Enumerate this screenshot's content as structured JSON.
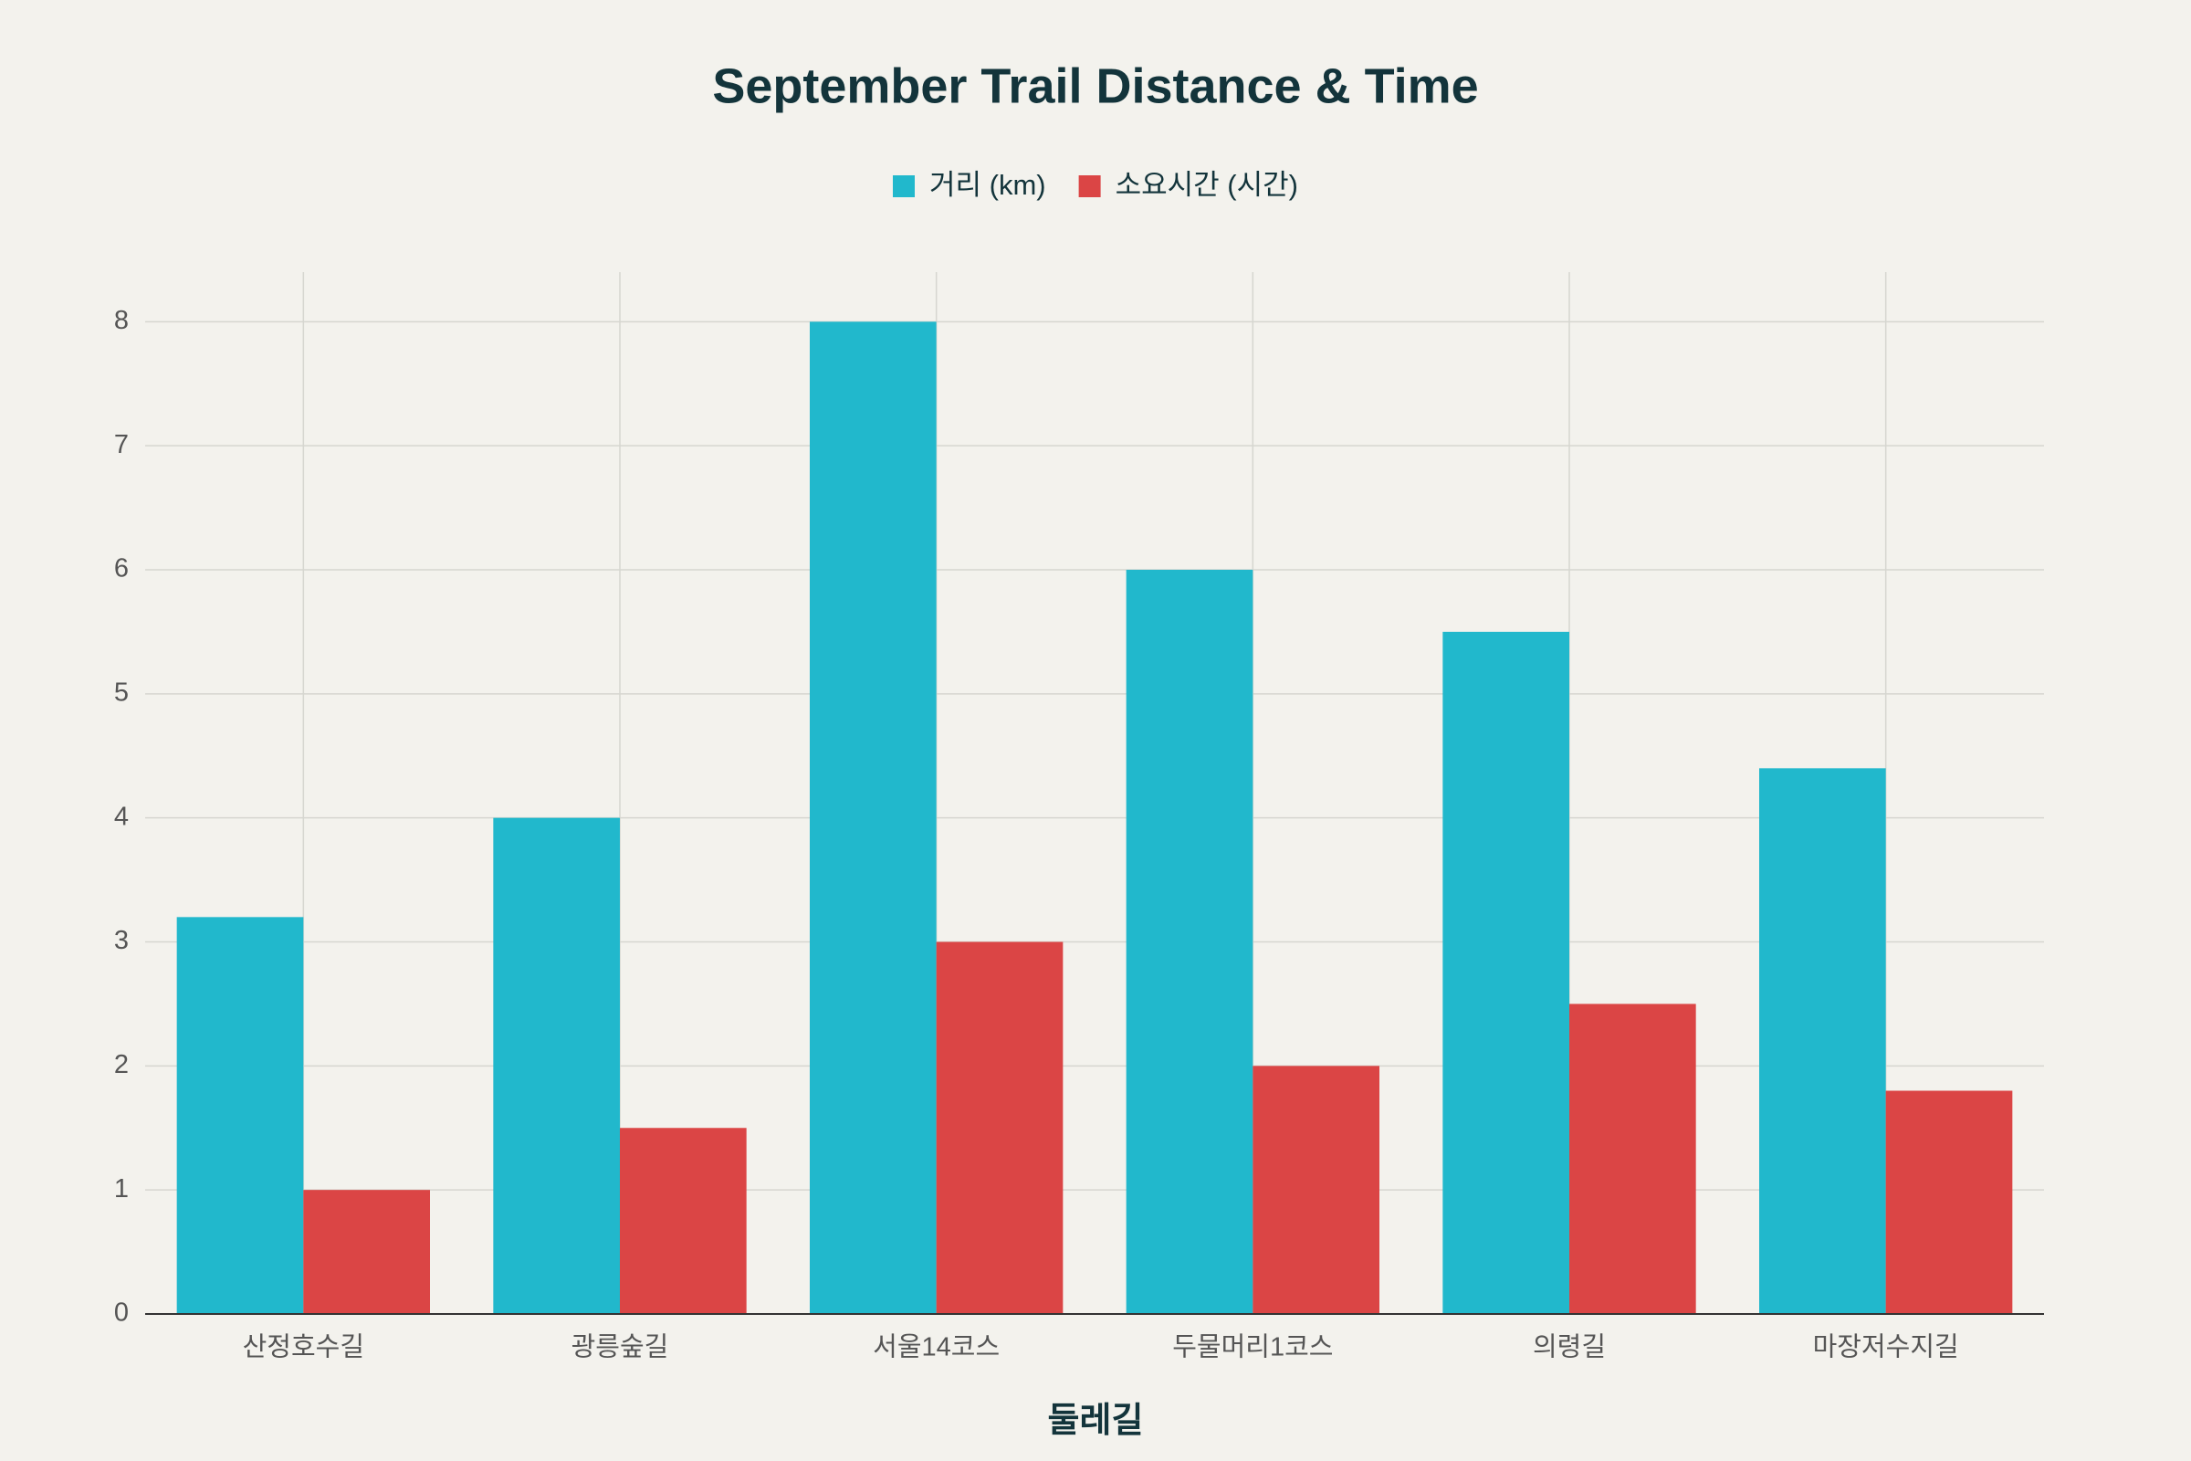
{
  "chart_data": {
    "type": "bar",
    "title": "September Trail Distance & Time",
    "x_label": "둘레길",
    "categories": [
      "산정호수길",
      "광릉숲길",
      "서울14코스",
      "두물머리1코스",
      "의령길",
      "마장저수지길"
    ],
    "series": [
      {
        "name": "거리 (km)",
        "color": "#21b8cc",
        "values": [
          3.2,
          4,
          8,
          6,
          5.5,
          4.4
        ]
      },
      {
        "name": "소요시간 (시간)",
        "color": "#db4545",
        "values": [
          1,
          1.5,
          3,
          2,
          2.5,
          1.8
        ]
      }
    ],
    "ylim": [
      0,
      8.4
    ],
    "yticks": [
      0,
      1,
      2,
      3,
      4,
      5,
      6,
      7,
      8
    ],
    "grid": true,
    "legend": "top"
  }
}
